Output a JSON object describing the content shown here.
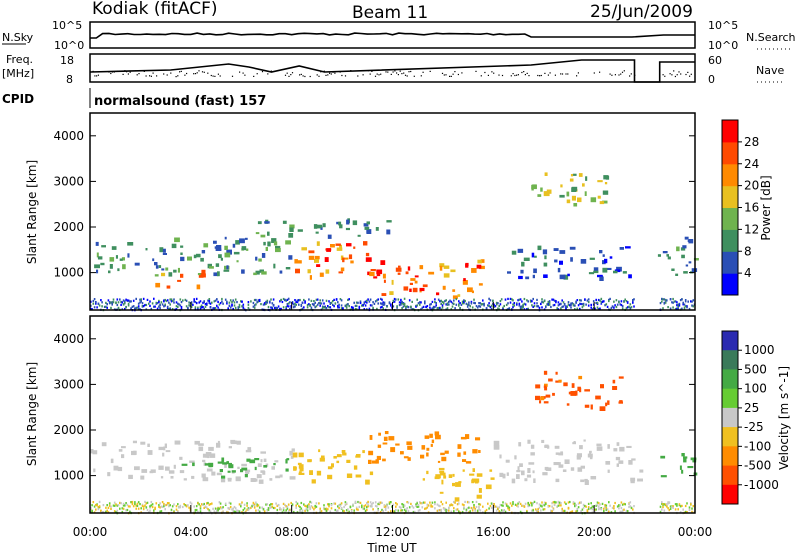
{
  "header": {
    "station": "Kodiak (fitACF)",
    "beam": "Beam 11",
    "date": "25/Jun/2009"
  },
  "nsky_panel": {
    "left_label": "N.Sky",
    "right_label": "N.Search",
    "left_ticks": [
      "10^5",
      "10^0"
    ],
    "right_ticks": [
      "10^5",
      "10^0"
    ]
  },
  "freq_panel": {
    "left_label_line1": "Freq.",
    "left_label_line2": "[MHz]",
    "right_label": "Nave",
    "left_ticks": [
      "18",
      "8"
    ],
    "right_ticks": [
      "60",
      "0"
    ]
  },
  "cpid": {
    "label": "CPID",
    "text": "normalsound (fast) 157"
  },
  "colors": {
    "power": [
      "#0000ff",
      "#2a4fb5",
      "#3f8f5f",
      "#6fb34f",
      "#e8c020",
      "#ff8a00",
      "#ff4a00",
      "#ff0000"
    ],
    "velocity": [
      "#2a2ab0",
      "#3a7a5a",
      "#44aa44",
      "#66cc33",
      "#c8c8c8",
      "#f0c020",
      "#ff8c00",
      "#ff5000",
      "#ff0000"
    ]
  },
  "chart_data": [
    {
      "type": "heatmap",
      "title": "",
      "xlabel": "",
      "ylabel": "Slant Range [km]",
      "xlim": [
        "00:00",
        "24:00"
      ],
      "ylim": [
        180,
        4500
      ],
      "yticks": [
        1000,
        2000,
        3000,
        4000
      ],
      "colorbar": {
        "label": "Power [dB]",
        "ticks": [
          28,
          24,
          20,
          16,
          12,
          8,
          4
        ],
        "range": [
          0,
          32
        ]
      },
      "echo_regions": [
        {
          "t_start": 0.0,
          "t_end": 8.0,
          "r_start": 1000,
          "r_end": 1800,
          "value": 10
        },
        {
          "t_start": 2.5,
          "t_end": 4.5,
          "r_start": 700,
          "r_end": 1100,
          "value": 22
        },
        {
          "t_start": 8.0,
          "t_end": 11.5,
          "r_start": 900,
          "r_end": 1700,
          "value": 24
        },
        {
          "t_start": 11.5,
          "t_end": 15.5,
          "r_start": 500,
          "r_end": 1300,
          "value": 26
        },
        {
          "t_start": 6.0,
          "t_end": 12.0,
          "r_start": 1800,
          "r_end": 2200,
          "value": 8
        },
        {
          "t_start": 17.5,
          "t_end": 21.0,
          "r_start": 2500,
          "r_end": 3200,
          "value": 14
        },
        {
          "t_start": 16.5,
          "t_end": 21.5,
          "r_start": 900,
          "r_end": 1600,
          "value": 6
        },
        {
          "t_start": 22.5,
          "t_end": 24.0,
          "r_start": 900,
          "r_end": 1800,
          "value": 8
        }
      ]
    },
    {
      "type": "heatmap",
      "title": "",
      "xlabel": "Time UT",
      "ylabel": "Slant Range [km]",
      "xlim": [
        "00:00",
        "24:00"
      ],
      "ylim": [
        180,
        4500
      ],
      "yticks": [
        1000,
        2000,
        3000,
        4000
      ],
      "xticks": [
        "00:00",
        "04:00",
        "08:00",
        "12:00",
        "16:00",
        "20:00",
        "00:00"
      ],
      "colorbar": {
        "label": "Velocity [m s^-1]",
        "ticks": [
          1000,
          500,
          100,
          25,
          -25,
          -100,
          -500,
          -1000
        ]
      },
      "echo_regions": [
        {
          "t_start": 0.0,
          "t_end": 8.0,
          "r_start": 900,
          "r_end": 1800,
          "value": 0
        },
        {
          "t_start": 3.0,
          "t_end": 8.0,
          "r_start": 1000,
          "r_end": 1400,
          "value": 150
        },
        {
          "t_start": 8.0,
          "t_end": 11.5,
          "r_start": 900,
          "r_end": 1600,
          "value": -50
        },
        {
          "t_start": 11.0,
          "t_end": 15.5,
          "r_start": 1300,
          "r_end": 2000,
          "value": -300
        },
        {
          "t_start": 13.0,
          "t_end": 16.0,
          "r_start": 500,
          "r_end": 1200,
          "value": -60
        },
        {
          "t_start": 17.5,
          "t_end": 21.0,
          "r_start": 2500,
          "r_end": 3300,
          "value": -600
        },
        {
          "t_start": 16.0,
          "t_end": 22.0,
          "r_start": 900,
          "r_end": 1800,
          "value": 0
        },
        {
          "t_start": 22.5,
          "t_end": 24.0,
          "r_start": 1000,
          "r_end": 1500,
          "value": 200
        }
      ]
    }
  ]
}
